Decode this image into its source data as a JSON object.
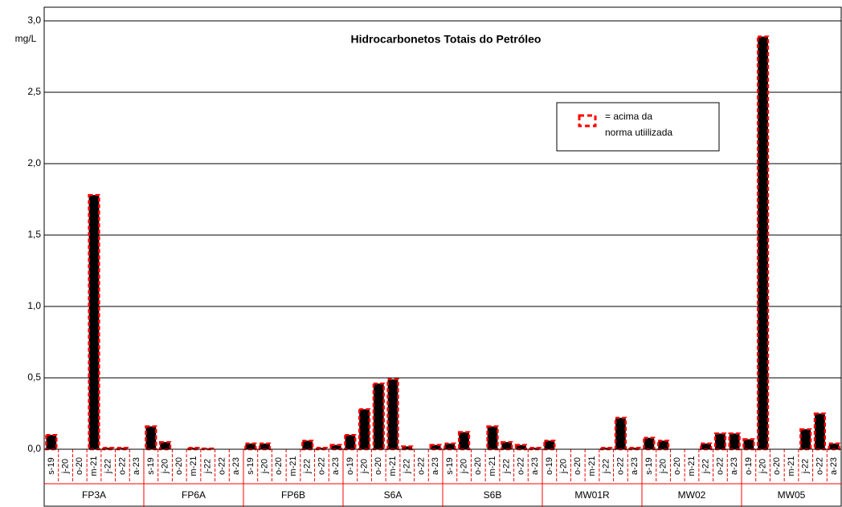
{
  "chart_data": {
    "type": "bar",
    "title": "Hidrocarbonetos Totais do Petróleo",
    "y_label": "mg/L",
    "legend_text": [
      "= acima da",
      "norma utiilizada"
    ],
    "color": "#000000",
    "outline_color": "#ff0000",
    "grid": true,
    "ylim": [
      0,
      3
    ],
    "yticks": [
      {
        "value": 0,
        "label": "0,0"
      },
      {
        "value": 0.5,
        "label": "0,5"
      },
      {
        "value": 1,
        "label": "1,0"
      },
      {
        "value": 1.5,
        "label": "1,5"
      },
      {
        "value": 2,
        "label": "2,0"
      },
      {
        "value": 2.5,
        "label": "2,5"
      },
      {
        "value": 3,
        "label": "3,0"
      }
    ],
    "group_labels": [
      "FP3A",
      "FP6A",
      "FP6B",
      "S6A",
      "S6B",
      "MW01R",
      "MW02",
      "MW05"
    ],
    "categories": [
      "s-19",
      "j-20",
      "o-20",
      "m-21",
      "j-22",
      "o-22",
      "a-23",
      "s-19",
      "j-20",
      "o-20",
      "m-21",
      "j-22",
      "o-22",
      "a-23",
      "s-19",
      "j-20",
      "o-20",
      "m-21",
      "j-22",
      "o-22",
      "a-23",
      "o-19",
      "j-20",
      "o-20",
      "m-21",
      "j-22",
      "o-22",
      "a-23",
      "s-19",
      "j-20",
      "o-20",
      "m-21",
      "j-22",
      "o-22",
      "a-23",
      "o-19",
      "j-20",
      "o-20",
      "m-21",
      "j-22",
      "o-22",
      "a-23",
      "s-19",
      "j-20",
      "o-20",
      "m-21",
      "j-22",
      "o-22",
      "a-23",
      "o-19",
      "j-20",
      "o-20",
      "m-21",
      "j-22",
      "o-22",
      "a-23"
    ],
    "values": [
      0.1,
      null,
      null,
      1.78,
      0.01,
      0.01,
      null,
      0.16,
      0.05,
      null,
      0.01,
      0.005,
      null,
      null,
      0.04,
      0.04,
      null,
      null,
      0.06,
      0.01,
      0.03,
      0.1,
      0.28,
      0.46,
      0.49,
      0.02,
      null,
      0.03,
      0.04,
      0.12,
      null,
      0.16,
      0.05,
      0.03,
      0.01,
      0.06,
      null,
      null,
      null,
      0.01,
      0.22,
      0.01,
      0.08,
      0.06,
      null,
      null,
      0.04,
      0.11,
      0.11,
      0.07,
      2.89,
      null,
      null,
      0.14,
      0.25,
      0.04
    ]
  }
}
